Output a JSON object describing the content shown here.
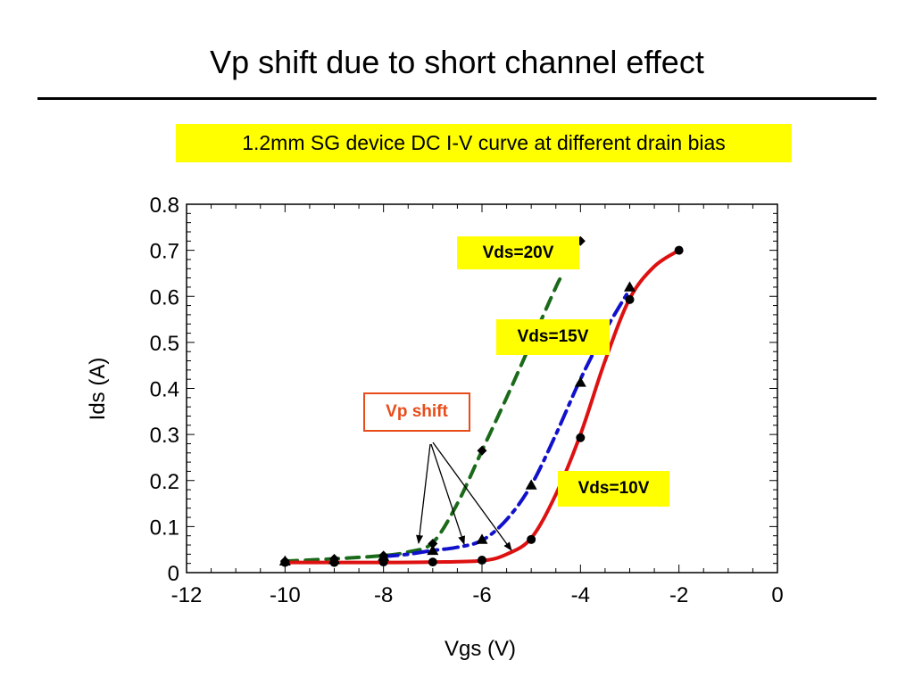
{
  "slide": {
    "title": "Vp shift due to short channel effect",
    "subtitle": "1.2mm SG device DC I-V curve at different drain bias"
  },
  "callouts": {
    "vds20": "Vds=20V",
    "vds15": "Vds=15V",
    "vds10": "Vds=10V",
    "vp_shift": "Vp shift"
  },
  "colors": {
    "vds10": "#dd1111",
    "vds15": "#1111cc",
    "vds20": "#1a6a1a",
    "highlight": "#ffff00",
    "vp_shift": "#e84c1a"
  },
  "chart_data": {
    "type": "line",
    "xlabel": "Vgs (V)",
    "ylabel": "Ids (A)",
    "xlim": [
      -12,
      0
    ],
    "ylim": [
      0,
      0.8
    ],
    "xticks": [
      -12,
      -10,
      -8,
      -6,
      -4,
      -2,
      0
    ],
    "yticks": [
      0,
      0.1,
      0.2,
      0.3,
      0.4,
      0.5,
      0.6,
      0.7,
      0.8
    ],
    "xtick_labels": [
      "-12",
      "-10",
      "-8",
      "-6",
      "-4",
      "-2",
      "0"
    ],
    "ytick_labels": [
      "0",
      "0.1",
      "0.2",
      "0.3",
      "0.4",
      "0.5",
      "0.6",
      "0.7",
      "0.8"
    ],
    "grid": false,
    "series": [
      {
        "name": "Vds=10V",
        "color": "#dd1111",
        "line_style": "solid",
        "marker": "circle",
        "points": [
          [
            -10,
            0.022
          ],
          [
            -9,
            0.022
          ],
          [
            -8,
            0.023
          ],
          [
            -7,
            0.023
          ],
          [
            -6,
            0.027
          ],
          [
            -5,
            0.072
          ],
          [
            -4,
            0.293
          ],
          [
            -3,
            0.593
          ],
          [
            -2,
            0.7
          ]
        ],
        "curve": [
          [
            -10,
            0.022
          ],
          [
            -9,
            0.022
          ],
          [
            -8,
            0.022
          ],
          [
            -7,
            0.023
          ],
          [
            -6,
            0.026
          ],
          [
            -5.5,
            0.04
          ],
          [
            -5,
            0.075
          ],
          [
            -4.5,
            0.17
          ],
          [
            -4,
            0.3
          ],
          [
            -3.5,
            0.46
          ],
          [
            -3,
            0.595
          ],
          [
            -2.5,
            0.665
          ],
          [
            -2,
            0.7
          ]
        ]
      },
      {
        "name": "Vds=15V",
        "color": "#1111cc",
        "line_style": "dashdot",
        "marker": "triangle",
        "points": [
          [
            -10,
            0.025
          ],
          [
            -9,
            0.028
          ],
          [
            -8,
            0.035
          ],
          [
            -7,
            0.048
          ],
          [
            -6,
            0.072
          ],
          [
            -5,
            0.19
          ],
          [
            -4,
            0.413
          ],
          [
            -3,
            0.62
          ]
        ],
        "curve": [
          [
            -8,
            0.035
          ],
          [
            -7.5,
            0.04
          ],
          [
            -7,
            0.048
          ],
          [
            -6.5,
            0.055
          ],
          [
            -6,
            0.07
          ],
          [
            -5.5,
            0.115
          ],
          [
            -5,
            0.19
          ],
          [
            -4.5,
            0.3
          ],
          [
            -4,
            0.42
          ],
          [
            -3.5,
            0.525
          ],
          [
            -3,
            0.615
          ]
        ]
      },
      {
        "name": "Vds=20V",
        "color": "#1a6a1a",
        "line_style": "dashed",
        "marker": "diamond",
        "points": [
          [
            -10,
            0.025
          ],
          [
            -9,
            0.03
          ],
          [
            -8,
            0.037
          ],
          [
            -7,
            0.063
          ],
          [
            -6,
            0.265
          ],
          [
            -4,
            0.72
          ]
        ],
        "curve": [
          [
            -10,
            0.025
          ],
          [
            -9,
            0.03
          ],
          [
            -8,
            0.037
          ],
          [
            -7.5,
            0.045
          ],
          [
            -7,
            0.065
          ],
          [
            -6.5,
            0.15
          ],
          [
            -6,
            0.265
          ],
          [
            -5.5,
            0.38
          ],
          [
            -5,
            0.5
          ],
          [
            -4.5,
            0.62
          ],
          [
            -4.4,
            0.64
          ]
        ]
      }
    ]
  }
}
